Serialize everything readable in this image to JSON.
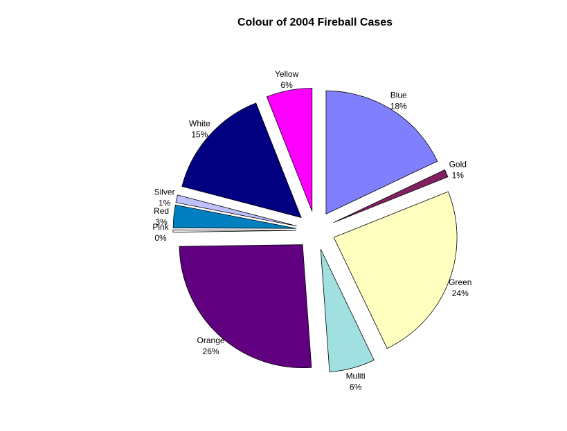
{
  "chart_data": {
    "type": "pie",
    "title": "Colour of 2004 Fireball Cases",
    "exploded": true,
    "start_angle_deg": 0,
    "direction": "clockwise",
    "slices": [
      {
        "label": "Blue",
        "pct_label": "18%",
        "value": 18,
        "color": "#8080FF"
      },
      {
        "label": "Gold",
        "pct_label": "1%",
        "value": 1,
        "color": "#802060"
      },
      {
        "label": "Green",
        "pct_label": "24%",
        "value": 24,
        "color": "#FFFFC0"
      },
      {
        "label": "Muliti",
        "pct_label": "6%",
        "value": 6,
        "color": "#A0E0E0"
      },
      {
        "label": "Orange",
        "pct_label": "26%",
        "value": 26,
        "color": "#600080"
      },
      {
        "label": "Pink",
        "pct_label": "0%",
        "value": 0.3,
        "color": "#FFFFFF"
      },
      {
        "label": "Red",
        "pct_label": "3%",
        "value": 3,
        "color": "#0080C0"
      },
      {
        "label": "Silver",
        "pct_label": "1%",
        "value": 1,
        "color": "#C0C0FF"
      },
      {
        "label": "White",
        "pct_label": "15%",
        "value": 15,
        "color": "#000080"
      },
      {
        "label": "Yellow",
        "pct_label": "6%",
        "value": 6,
        "color": "#FF00FF"
      }
    ]
  }
}
